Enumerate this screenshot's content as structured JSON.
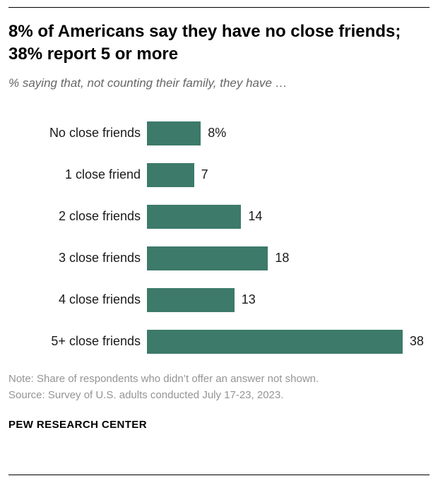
{
  "header": {
    "title": "8% of Americans say they have no close friends; 38% report 5 or more",
    "subtitle": "% saying that, not counting their family, they have …"
  },
  "chart_data": {
    "type": "bar",
    "orientation": "horizontal",
    "categories": [
      "No close friends",
      "1 close friend",
      "2 close friends",
      "3 close friends",
      "4 close friends",
      "5+ close friends"
    ],
    "values": [
      8,
      7,
      14,
      18,
      13,
      38
    ],
    "value_labels": [
      "8%",
      "7",
      "14",
      "18",
      "13",
      "38"
    ],
    "bar_color": "#3d7a6a",
    "xlim": [
      0,
      42
    ],
    "grid": false,
    "legend": false
  },
  "footer": {
    "note": "Note: Share of respondents who didn’t offer an answer not shown.",
    "source": "Source: Survey of U.S. adults conducted July 17-23, 2023.",
    "brand": "PEW RESEARCH CENTER"
  }
}
